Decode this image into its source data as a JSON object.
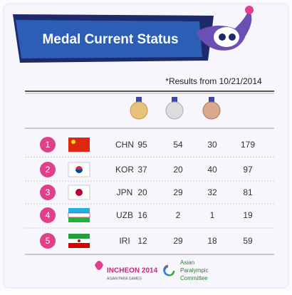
{
  "header": {
    "title": "Medal Current Status",
    "note": "*Results from 10/21/2014"
  },
  "table": {
    "rows": [
      [
        "1",
        "CHN",
        "95",
        "54",
        "30",
        "179"
      ],
      [
        "2",
        "KOR",
        "37",
        "20",
        "40",
        "97"
      ],
      [
        "3",
        "JPN",
        "20",
        "29",
        "32",
        "81"
      ],
      [
        "4",
        "UZB",
        "16",
        "2",
        "1",
        "19"
      ],
      [
        "5",
        "IRI",
        "12",
        "29",
        "18",
        "59"
      ]
    ]
  },
  "footer": {
    "games_logo": "INCHEON 2014",
    "games_sub": "ASIAN PARA GAMES",
    "committee": [
      "Asian",
      "Paralympic",
      "Committee"
    ]
  }
}
